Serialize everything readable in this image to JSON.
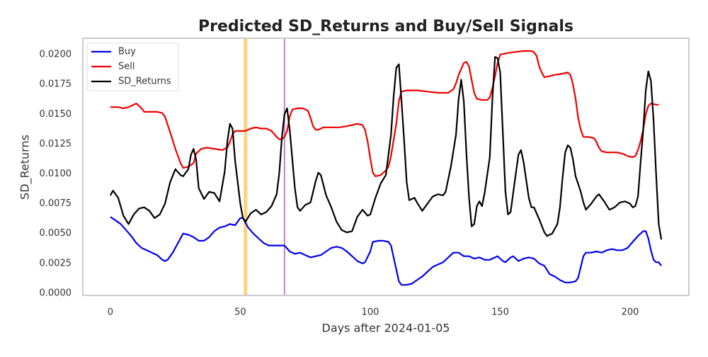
{
  "chart_data": {
    "type": "line",
    "title": "Predicted SD_Returns and Buy/Sell Signals",
    "xlabel": "Days after 2024-01-05",
    "ylabel": "SD_Returns",
    "xlim": [
      -10.6,
      222.6
    ],
    "ylim": [
      -0.00018,
      0.02137
    ],
    "xticks": [
      0,
      50,
      100,
      150,
      200
    ],
    "yticks": [
      {
        "value": 0,
        "label": "0.0000"
      },
      0.0025,
      {
        "value": 0.005,
        "label": "0.0050"
      },
      0.0075,
      {
        "value": 0.01,
        "label": "0.0100"
      },
      0.0125,
      {
        "value": 0.015,
        "label": "0.0150"
      },
      0.0175,
      {
        "value": 0.02,
        "label": "0.0200"
      }
    ],
    "grid": false,
    "legend": "upper left",
    "vlines": [
      {
        "x": 52,
        "color": "#fdd27a",
        "linewidth": 5
      },
      {
        "x": 67,
        "color": "#c47fc8",
        "linewidth": 2
      }
    ],
    "series": [
      {
        "name": "Buy",
        "color": "#0000ee",
        "x": [
          0,
          2,
          4,
          6,
          8,
          10,
          12,
          14,
          16,
          18,
          20,
          21,
          22,
          24,
          26,
          28,
          30,
          32,
          34,
          36,
          38,
          40,
          42,
          44,
          46,
          48,
          50,
          51,
          53,
          55,
          57,
          59,
          61,
          63,
          65,
          67,
          69,
          71,
          73,
          75,
          77,
          79,
          81,
          83,
          85,
          87,
          89,
          91,
          93,
          95,
          97,
          98,
          100,
          101,
          103,
          105,
          107,
          108,
          110,
          111,
          112,
          114,
          116,
          118,
          120,
          122,
          124,
          126,
          128,
          130,
          132,
          134,
          136,
          138,
          140,
          142,
          144,
          146,
          148,
          149,
          151,
          152,
          154,
          155,
          157,
          159,
          161,
          163,
          165,
          167,
          169,
          171,
          173,
          175,
          177,
          179,
          180,
          181,
          182,
          183,
          185,
          187,
          189,
          191,
          193,
          195,
          197,
          199,
          201,
          203,
          205,
          206,
          207,
          208,
          209,
          210,
          211,
          212
        ],
        "values": [
          0.0064,
          0.0061,
          0.0058,
          0.0053,
          0.0048,
          0.0042,
          0.0038,
          0.0036,
          0.0034,
          0.0032,
          0.0028,
          0.0027,
          0.0028,
          0.0034,
          0.0042,
          0.005,
          0.0049,
          0.0047,
          0.0044,
          0.0044,
          0.0047,
          0.0052,
          0.0055,
          0.0056,
          0.0058,
          0.0057,
          0.0063,
          0.0063,
          0.0055,
          0.005,
          0.0046,
          0.0042,
          0.004,
          0.004,
          0.004,
          0.004,
          0.0035,
          0.0033,
          0.0034,
          0.0032,
          0.003,
          0.0031,
          0.0032,
          0.0035,
          0.0038,
          0.0039,
          0.0038,
          0.0035,
          0.0031,
          0.0027,
          0.0025,
          0.0026,
          0.0035,
          0.0043,
          0.0044,
          0.0044,
          0.0043,
          0.004,
          0.002,
          0.001,
          0.0007,
          0.0007,
          0.0008,
          0.0011,
          0.0014,
          0.0018,
          0.0022,
          0.0024,
          0.0026,
          0.003,
          0.0034,
          0.0034,
          0.0031,
          0.0031,
          0.0029,
          0.003,
          0.0028,
          0.0028,
          0.003,
          0.0031,
          0.0027,
          0.0026,
          0.003,
          0.0031,
          0.0027,
          0.0029,
          0.003,
          0.0029,
          0.0025,
          0.0023,
          0.0016,
          0.0014,
          0.0011,
          0.0009,
          0.0009,
          0.001,
          0.0013,
          0.0022,
          0.0031,
          0.0034,
          0.0034,
          0.0035,
          0.0034,
          0.0036,
          0.0037,
          0.0036,
          0.0036,
          0.0038,
          0.0043,
          0.0048,
          0.0052,
          0.0052,
          0.0046,
          0.0036,
          0.0028,
          0.0026,
          0.0026,
          0.0023
        ]
      },
      {
        "name": "Sell",
        "color": "#ee0000",
        "x": [
          0,
          3,
          5,
          7,
          9,
          10,
          12,
          13,
          15,
          18,
          20,
          21,
          23,
          25,
          27,
          28,
          30,
          32,
          33,
          35,
          37,
          40,
          43,
          45,
          46,
          47,
          48,
          50,
          52,
          54,
          56,
          58,
          60,
          62,
          64,
          65,
          66,
          67,
          68,
          69,
          70,
          72,
          74,
          76,
          77,
          78,
          79,
          80,
          82,
          85,
          88,
          91,
          93,
          95,
          97,
          98,
          99,
          100,
          101,
          102,
          104,
          106,
          107,
          108,
          110,
          111,
          112,
          114,
          118,
          122,
          126,
          130,
          132,
          133,
          134,
          136,
          137,
          138,
          139,
          140,
          141,
          143,
          145,
          146,
          147,
          148,
          149,
          150,
          152,
          155,
          159,
          162,
          163,
          164,
          165,
          166,
          167,
          169,
          171,
          174,
          176,
          177,
          178,
          179,
          180,
          181,
          182,
          184,
          186,
          187,
          188,
          189,
          191,
          195,
          197,
          199,
          201,
          202,
          203,
          204,
          205,
          206,
          207,
          208,
          210,
          211
        ],
        "values": [
          0.0156,
          0.0156,
          0.0155,
          0.0156,
          0.0158,
          0.0159,
          0.0155,
          0.0152,
          0.0152,
          0.0152,
          0.0151,
          0.0148,
          0.0135,
          0.0121,
          0.0109,
          0.0105,
          0.0106,
          0.0109,
          0.0117,
          0.0121,
          0.0122,
          0.0121,
          0.012,
          0.0122,
          0.0127,
          0.0133,
          0.0136,
          0.0136,
          0.0136,
          0.0138,
          0.0139,
          0.0138,
          0.0138,
          0.0136,
          0.0131,
          0.0129,
          0.0129,
          0.0131,
          0.0136,
          0.0148,
          0.0154,
          0.0155,
          0.0155,
          0.0153,
          0.0147,
          0.014,
          0.0137,
          0.0137,
          0.0139,
          0.0139,
          0.0139,
          0.014,
          0.0141,
          0.0142,
          0.0141,
          0.0137,
          0.0127,
          0.0113,
          0.0101,
          0.0098,
          0.0099,
          0.0103,
          0.0106,
          0.0115,
          0.0142,
          0.0161,
          0.0169,
          0.017,
          0.017,
          0.0169,
          0.0168,
          0.0168,
          0.0171,
          0.0176,
          0.0183,
          0.0193,
          0.0194,
          0.019,
          0.0179,
          0.0168,
          0.0163,
          0.0162,
          0.0162,
          0.0164,
          0.0172,
          0.0182,
          0.0193,
          0.02,
          0.0201,
          0.0202,
          0.0203,
          0.0203,
          0.0202,
          0.0199,
          0.019,
          0.0185,
          0.0181,
          0.0182,
          0.0183,
          0.0184,
          0.0185,
          0.0183,
          0.0175,
          0.0163,
          0.0147,
          0.0137,
          0.0131,
          0.0131,
          0.013,
          0.0127,
          0.0122,
          0.0119,
          0.0118,
          0.0118,
          0.0117,
          0.0115,
          0.0114,
          0.0115,
          0.012,
          0.0127,
          0.0137,
          0.015,
          0.0157,
          0.0159,
          0.0158,
          0.0158
        ]
      },
      {
        "name": "SD_Returns",
        "color": "#000000",
        "x": [
          0,
          1,
          3,
          5,
          7,
          9,
          11,
          13,
          15,
          17,
          19,
          21,
          23,
          25,
          27,
          28,
          30,
          31,
          32,
          33,
          34,
          36,
          38,
          40,
          42,
          44,
          45,
          46,
          47,
          48,
          50,
          51,
          52,
          54,
          56,
          58,
          60,
          62,
          64,
          65,
          66,
          67,
          68,
          69,
          71,
          72,
          73,
          75,
          77,
          79,
          80,
          81,
          83,
          85,
          87,
          89,
          91,
          93,
          95,
          97,
          99,
          100,
          102,
          104,
          106,
          108,
          109,
          110,
          111,
          112,
          113,
          114,
          115,
          117,
          118,
          120,
          122,
          124,
          126,
          128,
          129,
          131,
          133,
          134,
          135,
          136,
          137,
          138,
          139,
          140,
          141,
          142,
          143,
          144,
          146,
          147,
          148,
          149,
          150,
          151,
          152,
          153,
          154,
          156,
          157,
          158,
          159,
          160,
          161,
          162,
          163,
          165,
          167,
          168,
          170,
          172,
          173,
          174,
          175,
          176,
          177,
          178,
          179,
          181,
          182,
          183,
          185,
          187,
          188,
          190,
          192,
          194,
          196,
          198,
          199,
          200,
          201,
          202,
          203,
          204,
          205,
          206,
          207,
          208,
          209,
          210,
          211,
          212
        ],
        "values": [
          0.0082,
          0.0086,
          0.008,
          0.0065,
          0.0058,
          0.0066,
          0.0071,
          0.0072,
          0.0069,
          0.0063,
          0.0066,
          0.0075,
          0.0093,
          0.0104,
          0.0099,
          0.0098,
          0.0104,
          0.0116,
          0.0121,
          0.0112,
          0.0088,
          0.0079,
          0.0085,
          0.0084,
          0.0077,
          0.0102,
          0.0127,
          0.0142,
          0.0138,
          0.0111,
          0.0075,
          0.0063,
          0.006,
          0.0067,
          0.007,
          0.0066,
          0.0068,
          0.0073,
          0.0083,
          0.0101,
          0.0131,
          0.015,
          0.0155,
          0.0137,
          0.0088,
          0.0072,
          0.0069,
          0.0074,
          0.0076,
          0.0094,
          0.0101,
          0.0099,
          0.0082,
          0.0072,
          0.006,
          0.0053,
          0.0051,
          0.0052,
          0.0064,
          0.007,
          0.0065,
          0.0066,
          0.008,
          0.0092,
          0.0099,
          0.0133,
          0.0165,
          0.0189,
          0.0192,
          0.0162,
          0.0129,
          0.0093,
          0.0078,
          0.008,
          0.0076,
          0.0069,
          0.0075,
          0.0081,
          0.0083,
          0.0082,
          0.0085,
          0.0106,
          0.0133,
          0.0163,
          0.0179,
          0.0161,
          0.0117,
          0.008,
          0.0056,
          0.0058,
          0.0073,
          0.0077,
          0.0073,
          0.0084,
          0.0114,
          0.0163,
          0.0198,
          0.0197,
          0.0185,
          0.0135,
          0.0085,
          0.0066,
          0.0068,
          0.01,
          0.0116,
          0.012,
          0.011,
          0.0095,
          0.008,
          0.0072,
          0.0072,
          0.0062,
          0.0051,
          0.0048,
          0.005,
          0.0058,
          0.0072,
          0.0097,
          0.0118,
          0.0124,
          0.0122,
          0.0112,
          0.0098,
          0.0085,
          0.0076,
          0.007,
          0.0075,
          0.0081,
          0.0083,
          0.0077,
          0.007,
          0.0072,
          0.0076,
          0.0077,
          0.0076,
          0.0075,
          0.0072,
          0.0073,
          0.0081,
          0.0109,
          0.0136,
          0.017,
          0.0186,
          0.0178,
          0.0145,
          0.01,
          0.0058,
          0.0045
        ]
      }
    ]
  }
}
